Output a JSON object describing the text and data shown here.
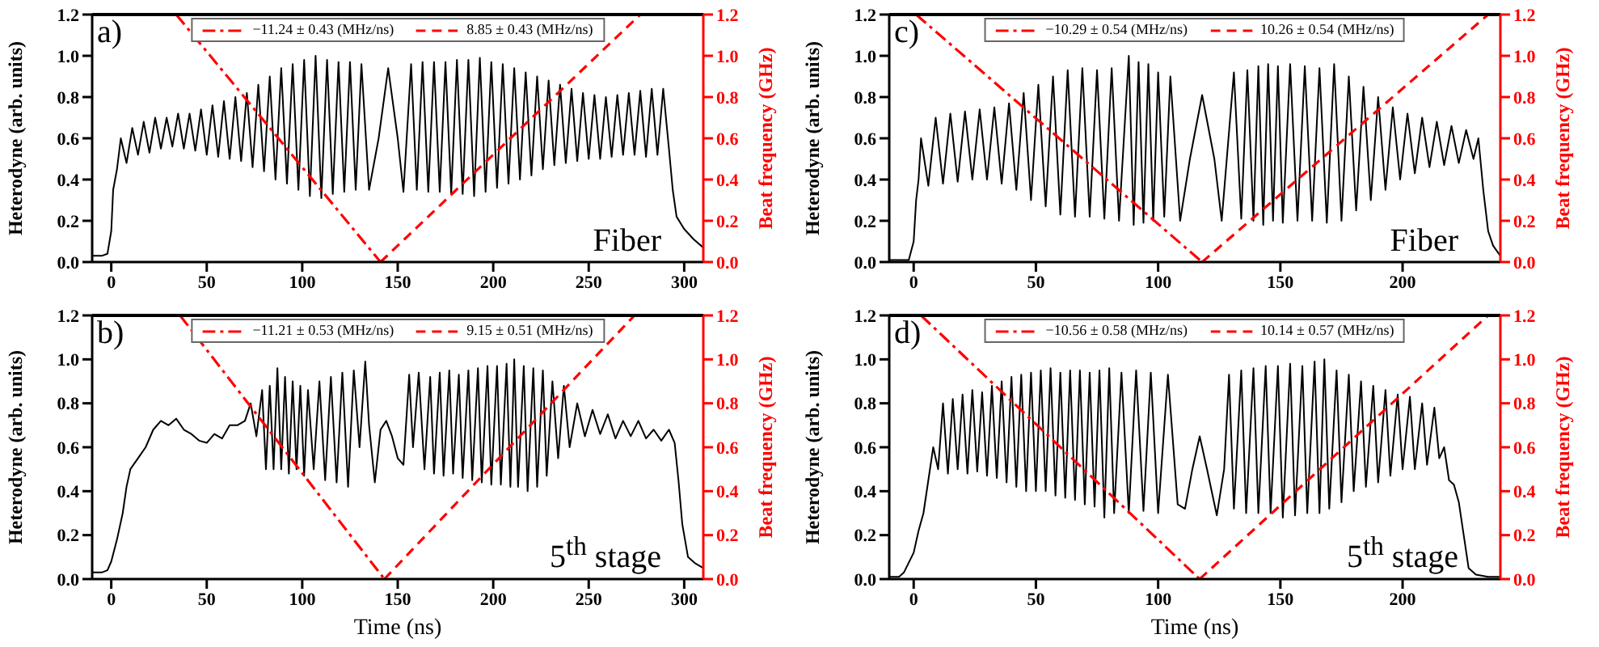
{
  "chart_data": [
    {
      "type": "line",
      "annotations": [
        "a)",
        "Fiber"
      ],
      "ylabel": "Heterodyne (arb. units)",
      "y2label": "Beat frequency (GHz)",
      "xlim": [
        -10,
        310
      ],
      "xticks": [
        0,
        50,
        100,
        150,
        200,
        250,
        300
      ],
      "ylim": [
        0,
        1.2
      ],
      "yticks": [
        {
          "value": 0,
          "label": "0.0"
        },
        {
          "value": 0.2,
          "label": "0.2"
        },
        {
          "value": 0.4,
          "label": "0.4"
        },
        {
          "value": 0.6,
          "label": "0.6"
        },
        {
          "value": 0.8,
          "label": "0.8"
        },
        {
          "value": 1,
          "label": "1.0"
        },
        {
          "value": 1.2,
          "label": "1.2"
        }
      ],
      "y2lim": [
        0,
        1.2
      ],
      "y2ticks": [
        {
          "value": 0,
          "label": "0.0"
        },
        {
          "value": 0.2,
          "label": "0.2"
        },
        {
          "value": 0.4,
          "label": "0.4"
        },
        {
          "value": 0.6,
          "label": "0.6"
        },
        {
          "value": 0.8,
          "label": "0.8"
        },
        {
          "value": 1,
          "label": "1.0"
        },
        {
          "value": 1.2,
          "label": "1.2"
        }
      ],
      "legend": "top",
      "series": [
        {
          "color": "#000000",
          "line_style": "solid",
          "x": [
            -10,
            -5,
            -2,
            0,
            1,
            3,
            5,
            8,
            11,
            14,
            17,
            20,
            23,
            26,
            29,
            32,
            35,
            38,
            41,
            44,
            47,
            50,
            53,
            56,
            59,
            62,
            65,
            68,
            71,
            74,
            77,
            80,
            83,
            86,
            89,
            92,
            95,
            98,
            101,
            104,
            107,
            110,
            113,
            116,
            119,
            122,
            125,
            128,
            131,
            135,
            140,
            145,
            150,
            153,
            157,
            160,
            163,
            166,
            169,
            172,
            175,
            178,
            181,
            184,
            187,
            190,
            193,
            196,
            199,
            202,
            205,
            208,
            211,
            214,
            217,
            220,
            223,
            226,
            229,
            232,
            235,
            238,
            241,
            244,
            247,
            250,
            253,
            256,
            259,
            262,
            265,
            268,
            271,
            274,
            277,
            280,
            283,
            286,
            289,
            292,
            294,
            296,
            300,
            305,
            310
          ],
          "values": [
            0.03,
            0.03,
            0.04,
            0.15,
            0.35,
            0.45,
            0.6,
            0.48,
            0.65,
            0.52,
            0.68,
            0.53,
            0.7,
            0.55,
            0.7,
            0.56,
            0.72,
            0.55,
            0.72,
            0.54,
            0.74,
            0.52,
            0.76,
            0.51,
            0.78,
            0.5,
            0.8,
            0.49,
            0.82,
            0.46,
            0.86,
            0.44,
            0.9,
            0.4,
            0.94,
            0.38,
            0.96,
            0.35,
            0.98,
            0.32,
            1.0,
            0.31,
            0.98,
            0.33,
            0.97,
            0.34,
            0.97,
            0.35,
            0.96,
            0.35,
            0.6,
            0.94,
            0.6,
            0.34,
            0.96,
            0.35,
            0.97,
            0.34,
            0.97,
            0.34,
            0.97,
            0.33,
            0.98,
            0.33,
            0.98,
            0.32,
            0.99,
            0.34,
            0.97,
            0.36,
            0.96,
            0.38,
            0.94,
            0.4,
            0.92,
            0.42,
            0.9,
            0.45,
            0.88,
            0.47,
            0.86,
            0.48,
            0.84,
            0.49,
            0.82,
            0.5,
            0.81,
            0.5,
            0.8,
            0.51,
            0.81,
            0.52,
            0.82,
            0.52,
            0.83,
            0.51,
            0.84,
            0.52,
            0.84,
            0.55,
            0.35,
            0.22,
            0.16,
            0.11,
            0.07
          ]
        },
        {
          "name": "−11.24 ± 0.43 (MHz/ns)",
          "color": "#ff0000",
          "line_style": "dashdot",
          "axis": "y2",
          "x": [
            34,
            141
          ],
          "values": [
            1.2,
            0
          ]
        },
        {
          "name": "8.85 ± 0.43 (MHz/ns)",
          "color": "#ff0000",
          "line_style": "dashed",
          "axis": "y2",
          "x": [
            141,
            277
          ],
          "values": [
            0,
            1.2
          ]
        }
      ]
    },
    {
      "type": "line",
      "annotations": [
        "c)",
        "Fiber"
      ],
      "ylabel": "Heterodyne (arb. units)",
      "y2label": "Beat frequency (GHz)",
      "xlim": [
        -10,
        240
      ],
      "xticks": [
        0,
        50,
        100,
        150,
        200
      ],
      "ylim": [
        0,
        1.2
      ],
      "yticks": [
        {
          "value": 0,
          "label": "0.0"
        },
        {
          "value": 0.2,
          "label": "0.2"
        },
        {
          "value": 0.4,
          "label": "0.4"
        },
        {
          "value": 0.6,
          "label": "0.6"
        },
        {
          "value": 0.8,
          "label": "0.8"
        },
        {
          "value": 1,
          "label": "1.0"
        },
        {
          "value": 1.2,
          "label": "1.2"
        }
      ],
      "y2lim": [
        0,
        1.2
      ],
      "y2ticks": [
        {
          "value": 0,
          "label": "0.0"
        },
        {
          "value": 0.2,
          "label": "0.2"
        },
        {
          "value": 0.4,
          "label": "0.4"
        },
        {
          "value": 0.6,
          "label": "0.6"
        },
        {
          "value": 0.8,
          "label": "0.8"
        },
        {
          "value": 1,
          "label": "1.0"
        },
        {
          "value": 1.2,
          "label": "1.2"
        }
      ],
      "legend": "top",
      "series": [
        {
          "color": "#000000",
          "line_style": "solid",
          "x": [
            -10,
            -2,
            0,
            1,
            2,
            3,
            6,
            9,
            12,
            15,
            18,
            21,
            24,
            27,
            30,
            33,
            36,
            39,
            42,
            45,
            48,
            51,
            54,
            57,
            60,
            63,
            66,
            69,
            72,
            75,
            78,
            81,
            84,
            88,
            90,
            92,
            94,
            96,
            98,
            100,
            102.5,
            105,
            109,
            113,
            118,
            123,
            126,
            131,
            134,
            136.5,
            139,
            141,
            143,
            145,
            147,
            149,
            151,
            154,
            157,
            160,
            163,
            166,
            169,
            172,
            175,
            178,
            181,
            184,
            187,
            190,
            193,
            196,
            199,
            202,
            205,
            208,
            211,
            214,
            217,
            220,
            223,
            226,
            229,
            231,
            233,
            235,
            237,
            240
          ],
          "values": [
            0.01,
            0.01,
            0.1,
            0.3,
            0.4,
            0.6,
            0.37,
            0.7,
            0.38,
            0.72,
            0.39,
            0.73,
            0.4,
            0.74,
            0.4,
            0.75,
            0.38,
            0.77,
            0.35,
            0.82,
            0.3,
            0.86,
            0.27,
            0.9,
            0.23,
            0.93,
            0.22,
            0.94,
            0.22,
            0.93,
            0.21,
            0.94,
            0.2,
            1.0,
            0.18,
            0.97,
            0.19,
            0.96,
            0.2,
            0.92,
            0.22,
            0.9,
            0.2,
            0.5,
            0.81,
            0.5,
            0.2,
            0.92,
            0.21,
            0.93,
            0.2,
            0.95,
            0.18,
            0.96,
            0.2,
            0.95,
            0.19,
            0.96,
            0.2,
            0.95,
            0.2,
            0.94,
            0.19,
            0.96,
            0.2,
            0.9,
            0.25,
            0.85,
            0.3,
            0.8,
            0.35,
            0.75,
            0.4,
            0.72,
            0.43,
            0.7,
            0.46,
            0.68,
            0.47,
            0.66,
            0.48,
            0.64,
            0.5,
            0.6,
            0.35,
            0.15,
            0.08,
            0.03
          ]
        },
        {
          "name": "−10.29 ± 0.54 (MHz/ns)",
          "color": "#ff0000",
          "line_style": "dashdot",
          "axis": "y2",
          "x": [
            1,
            118
          ],
          "values": [
            1.2,
            0
          ]
        },
        {
          "name": "10.26 ± 0.54 (MHz/ns)",
          "color": "#ff0000",
          "line_style": "dashed",
          "axis": "y2",
          "x": [
            118,
            235
          ],
          "values": [
            0,
            1.2
          ]
        }
      ]
    },
    {
      "type": "line",
      "annotations": [
        "b)",
        "5$^{th}$ stage"
      ],
      "xlabel": "Time (ns)",
      "ylabel": "Heterodyne (arb. units)",
      "y2label": "Beat frequency (GHz)",
      "xlim": [
        -10,
        310
      ],
      "xticks": [
        0,
        50,
        100,
        150,
        200,
        250,
        300
      ],
      "ylim": [
        0,
        1.2
      ],
      "yticks": [
        {
          "value": 0,
          "label": "0.0"
        },
        {
          "value": 0.2,
          "label": "0.2"
        },
        {
          "value": 0.4,
          "label": "0.4"
        },
        {
          "value": 0.6,
          "label": "0.6"
        },
        {
          "value": 0.8,
          "label": "0.8"
        },
        {
          "value": 1,
          "label": "1.0"
        },
        {
          "value": 1.2,
          "label": "1.2"
        }
      ],
      "y2lim": [
        0,
        1.2
      ],
      "y2ticks": [
        {
          "value": 0,
          "label": "0.0"
        },
        {
          "value": 0.2,
          "label": "0.2"
        },
        {
          "value": 0.4,
          "label": "0.4"
        },
        {
          "value": 0.6,
          "label": "0.6"
        },
        {
          "value": 0.8,
          "label": "0.8"
        },
        {
          "value": 1,
          "label": "1.0"
        },
        {
          "value": 1.2,
          "label": "1.2"
        }
      ],
      "legend": "top",
      "series": [
        {
          "color": "#000000",
          "line_style": "solid",
          "x": [
            -10,
            -5,
            -2,
            0,
            3,
            6,
            8,
            10,
            14,
            18,
            22,
            26,
            30,
            34,
            38,
            42,
            46,
            50,
            54,
            58,
            62,
            66,
            70,
            73,
            76,
            79,
            81,
            83,
            85,
            87,
            89,
            91,
            93,
            95,
            97,
            99,
            101,
            103,
            106,
            109,
            112,
            115,
            118,
            121,
            124,
            127,
            130,
            133,
            135,
            138,
            141,
            144,
            147,
            150,
            153,
            156,
            158,
            161,
            164,
            167,
            169,
            172,
            174,
            177,
            179,
            182,
            184,
            187,
            189,
            192,
            194,
            197,
            199,
            202,
            204,
            207,
            209,
            211,
            213,
            216,
            218,
            221,
            223,
            226,
            228,
            231,
            234,
            237,
            240,
            244,
            248,
            252,
            256,
            260,
            264,
            268,
            272,
            276,
            280,
            284,
            288,
            292,
            295,
            297,
            299,
            302,
            306,
            310
          ],
          "values": [
            0.03,
            0.03,
            0.04,
            0.08,
            0.18,
            0.3,
            0.42,
            0.5,
            0.55,
            0.6,
            0.68,
            0.72,
            0.7,
            0.73,
            0.68,
            0.66,
            0.63,
            0.62,
            0.66,
            0.64,
            0.7,
            0.7,
            0.72,
            0.8,
            0.65,
            0.86,
            0.5,
            0.88,
            0.5,
            0.96,
            0.5,
            0.92,
            0.48,
            0.9,
            0.5,
            0.88,
            0.47,
            0.86,
            0.5,
            0.9,
            0.45,
            0.92,
            0.44,
            0.94,
            0.42,
            0.95,
            0.6,
            0.99,
            0.7,
            0.44,
            0.68,
            0.72,
            0.65,
            0.55,
            0.52,
            0.93,
            0.6,
            0.94,
            0.5,
            0.92,
            0.48,
            0.94,
            0.47,
            0.95,
            0.48,
            0.93,
            0.46,
            0.95,
            0.45,
            0.96,
            0.44,
            0.97,
            0.43,
            0.97,
            0.43,
            0.98,
            0.42,
            1.0,
            0.42,
            0.97,
            0.4,
            0.96,
            0.42,
            0.95,
            0.47,
            0.9,
            0.55,
            0.88,
            0.6,
            0.8,
            0.65,
            0.77,
            0.66,
            0.75,
            0.64,
            0.72,
            0.65,
            0.72,
            0.64,
            0.68,
            0.63,
            0.68,
            0.62,
            0.45,
            0.25,
            0.1,
            0.07,
            0.05
          ]
        },
        {
          "name": "−11.21 ± 0.53 (MHz/ns)",
          "color": "#ff0000",
          "line_style": "dashdot",
          "axis": "y2",
          "x": [
            36,
            143
          ],
          "values": [
            1.2,
            0
          ]
        },
        {
          "name": "9.15 ± 0.51 (MHz/ns)",
          "color": "#ff0000",
          "line_style": "dashed",
          "axis": "y2",
          "x": [
            143,
            274
          ],
          "values": [
            0,
            1.2
          ]
        }
      ]
    },
    {
      "type": "line",
      "annotations": [
        "d)",
        "5$^{th}$ stage"
      ],
      "xlabel": "Time (ns)",
      "ylabel": "Heterodyne (arb. units)",
      "y2label": "Beat frequency (GHz)",
      "xlim": [
        -10,
        240
      ],
      "xticks": [
        0,
        50,
        100,
        150,
        200
      ],
      "ylim": [
        0,
        1.2
      ],
      "yticks": [
        {
          "value": 0,
          "label": "0.0"
        },
        {
          "value": 0.2,
          "label": "0.2"
        },
        {
          "value": 0.4,
          "label": "0.4"
        },
        {
          "value": 0.6,
          "label": "0.6"
        },
        {
          "value": 0.8,
          "label": "0.8"
        },
        {
          "value": 1,
          "label": "1.0"
        },
        {
          "value": 1.2,
          "label": "1.2"
        }
      ],
      "y2lim": [
        0,
        1.2
      ],
      "y2ticks": [
        {
          "value": 0,
          "label": "0.0"
        },
        {
          "value": 0.2,
          "label": "0.2"
        },
        {
          "value": 0.4,
          "label": "0.4"
        },
        {
          "value": 0.6,
          "label": "0.6"
        },
        {
          "value": 0.8,
          "label": "0.8"
        },
        {
          "value": 1,
          "label": "1.0"
        },
        {
          "value": 1.2,
          "label": "1.2"
        }
      ],
      "legend": "top",
      "series": [
        {
          "color": "#000000",
          "line_style": "solid",
          "x": [
            -10,
            -6,
            -4,
            0,
            2,
            4,
            6,
            8,
            10,
            12,
            14,
            16,
            18,
            20,
            22,
            24,
            26,
            28,
            30,
            32,
            34,
            36,
            38,
            40,
            42,
            44,
            46,
            48,
            50,
            52,
            54,
            56,
            58,
            60,
            62,
            64,
            66,
            68,
            70,
            72,
            74,
            76,
            78,
            80,
            82,
            85,
            88,
            91,
            94,
            97,
            100,
            104,
            108,
            111,
            114,
            117,
            120,
            124,
            127,
            129,
            131,
            134,
            136,
            139,
            141,
            144,
            146,
            149,
            151,
            154,
            156,
            159,
            161,
            164,
            166,
            168,
            170,
            173,
            175,
            178,
            180,
            183,
            185,
            188,
            190,
            193,
            195,
            198,
            200,
            203,
            205,
            208,
            210,
            213,
            215,
            217,
            219,
            221,
            223,
            225,
            227,
            230,
            235,
            240
          ],
          "values": [
            0.01,
            0.01,
            0.03,
            0.12,
            0.22,
            0.3,
            0.45,
            0.6,
            0.5,
            0.8,
            0.48,
            0.82,
            0.5,
            0.84,
            0.48,
            0.86,
            0.49,
            0.85,
            0.47,
            0.88,
            0.46,
            0.9,
            0.44,
            0.92,
            0.42,
            0.93,
            0.4,
            0.94,
            0.4,
            0.95,
            0.4,
            0.96,
            0.38,
            0.94,
            0.37,
            0.95,
            0.36,
            0.95,
            0.34,
            0.94,
            0.33,
            0.95,
            0.28,
            0.96,
            0.3,
            0.94,
            0.3,
            0.95,
            0.31,
            0.94,
            0.3,
            0.93,
            0.34,
            0.32,
            0.5,
            0.65,
            0.5,
            0.29,
            0.5,
            0.93,
            0.32,
            0.95,
            0.3,
            0.96,
            0.3,
            0.97,
            0.3,
            0.97,
            0.28,
            0.98,
            0.29,
            0.97,
            0.3,
            0.99,
            0.3,
            1.0,
            0.32,
            0.95,
            0.35,
            0.93,
            0.4,
            0.9,
            0.42,
            0.88,
            0.44,
            0.86,
            0.47,
            0.84,
            0.5,
            0.83,
            0.5,
            0.8,
            0.52,
            0.78,
            0.55,
            0.6,
            0.45,
            0.43,
            0.35,
            0.2,
            0.05,
            0.02,
            0.01,
            0.01
          ]
        },
        {
          "name": "−10.56 ± 0.58 (MHz/ns)",
          "color": "#ff0000",
          "line_style": "dashdot",
          "axis": "y2",
          "x": [
            3,
            117
          ],
          "values": [
            1.2,
            0
          ]
        },
        {
          "name": "10.14 ± 0.57 (MHz/ns)",
          "color": "#ff0000",
          "line_style": "dashed",
          "axis": "y2",
          "x": [
            117,
            235
          ],
          "values": [
            0,
            1.2
          ]
        }
      ]
    }
  ]
}
